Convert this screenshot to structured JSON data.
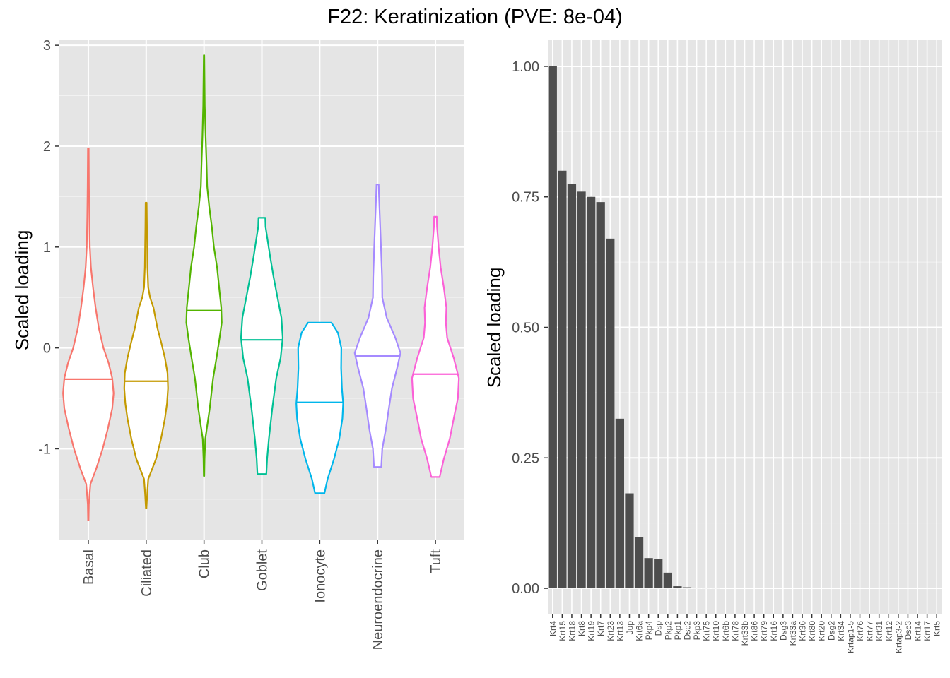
{
  "title": "F22: Keratinization (PVE: 8e-04)",
  "chart_data": [
    {
      "type": "violin",
      "ylabel": "Scaled loading",
      "xlabel": "",
      "ylim": [
        -1.9,
        3.05
      ],
      "yticks": [
        -1,
        0,
        1,
        2,
        3
      ],
      "grid": true,
      "categories": [
        "Basal",
        "Ciliated",
        "Club",
        "Goblet",
        "Ionocyte",
        "Neuroendocrine",
        "Tuft"
      ],
      "colors": [
        "#F8766D",
        "#C49A00",
        "#53B400",
        "#00C094",
        "#00B6EB",
        "#A58AFF",
        "#FB61D7"
      ],
      "medians": [
        -0.31,
        -0.33,
        0.37,
        0.08,
        -0.54,
        -0.08,
        -0.26
      ],
      "ranges": [
        [
          -1.71,
          1.98
        ],
        [
          -1.59,
          1.44
        ],
        [
          -1.27,
          2.9
        ],
        [
          -1.25,
          1.29
        ],
        [
          -1.44,
          0.25
        ],
        [
          -1.18,
          1.62
        ],
        [
          -1.28,
          1.3
        ]
      ],
      "profiles": [
        [
          [
            -1.71,
            0.01
          ],
          [
            -1.55,
            0.02
          ],
          [
            -1.35,
            0.08
          ],
          [
            -1.2,
            0.3
          ],
          [
            -1.0,
            0.55
          ],
          [
            -0.8,
            0.75
          ],
          [
            -0.6,
            0.92
          ],
          [
            -0.45,
            0.97
          ],
          [
            -0.3,
            0.92
          ],
          [
            -0.15,
            0.78
          ],
          [
            0.0,
            0.58
          ],
          [
            0.2,
            0.4
          ],
          [
            0.4,
            0.28
          ],
          [
            0.6,
            0.18
          ],
          [
            0.8,
            0.1
          ],
          [
            1.0,
            0.06
          ],
          [
            1.3,
            0.04
          ],
          [
            1.6,
            0.025
          ],
          [
            1.98,
            0.015
          ]
        ],
        [
          [
            -1.59,
            0.01
          ],
          [
            -1.45,
            0.04
          ],
          [
            -1.3,
            0.08
          ],
          [
            -1.1,
            0.38
          ],
          [
            -0.9,
            0.57
          ],
          [
            -0.7,
            0.72
          ],
          [
            -0.55,
            0.8
          ],
          [
            -0.4,
            0.84
          ],
          [
            -0.25,
            0.82
          ],
          [
            -0.1,
            0.72
          ],
          [
            0.05,
            0.58
          ],
          [
            0.2,
            0.43
          ],
          [
            0.4,
            0.28
          ],
          [
            0.5,
            0.15
          ],
          [
            0.6,
            0.08
          ],
          [
            0.8,
            0.05
          ],
          [
            1.0,
            0.04
          ],
          [
            1.2,
            0.03
          ],
          [
            1.44,
            0.02
          ]
        ],
        [
          [
            -1.27,
            0.01
          ],
          [
            -1.1,
            0.02
          ],
          [
            -0.9,
            0.05
          ],
          [
            -0.6,
            0.22
          ],
          [
            -0.3,
            0.35
          ],
          [
            -0.1,
            0.48
          ],
          [
            0.1,
            0.6
          ],
          [
            0.25,
            0.68
          ],
          [
            0.4,
            0.66
          ],
          [
            0.6,
            0.58
          ],
          [
            0.8,
            0.5
          ],
          [
            1.0,
            0.38
          ],
          [
            1.2,
            0.3
          ],
          [
            1.4,
            0.2
          ],
          [
            1.6,
            0.12
          ],
          [
            1.8,
            0.1
          ],
          [
            2.1,
            0.06
          ],
          [
            2.4,
            0.03
          ],
          [
            2.9,
            0.01
          ]
        ],
        [
          [
            -1.25,
            0.17
          ],
          [
            -1.1,
            0.2
          ],
          [
            -0.9,
            0.27
          ],
          [
            -0.6,
            0.4
          ],
          [
            -0.3,
            0.55
          ],
          [
            -0.1,
            0.72
          ],
          [
            0.1,
            0.8
          ],
          [
            0.3,
            0.75
          ],
          [
            0.5,
            0.6
          ],
          [
            0.7,
            0.45
          ],
          [
            0.9,
            0.32
          ],
          [
            1.1,
            0.2
          ],
          [
            1.2,
            0.14
          ],
          [
            1.29,
            0.13
          ]
        ],
        [
          [
            -1.44,
            0.18
          ],
          [
            -1.3,
            0.3
          ],
          [
            -1.1,
            0.55
          ],
          [
            -0.9,
            0.75
          ],
          [
            -0.7,
            0.87
          ],
          [
            -0.55,
            0.9
          ],
          [
            -0.4,
            0.85
          ],
          [
            -0.2,
            0.82
          ],
          [
            0.0,
            0.83
          ],
          [
            0.15,
            0.7
          ],
          [
            0.25,
            0.45
          ]
        ],
        [
          [
            -1.18,
            0.14
          ],
          [
            -1.0,
            0.18
          ],
          [
            -0.8,
            0.32
          ],
          [
            -0.6,
            0.43
          ],
          [
            -0.4,
            0.55
          ],
          [
            -0.2,
            0.75
          ],
          [
            -0.05,
            0.88
          ],
          [
            0.1,
            0.68
          ],
          [
            0.3,
            0.35
          ],
          [
            0.5,
            0.18
          ],
          [
            0.7,
            0.17
          ],
          [
            1.0,
            0.13
          ],
          [
            1.2,
            0.1
          ],
          [
            1.4,
            0.07
          ],
          [
            1.62,
            0.04
          ]
        ],
        [
          [
            -1.28,
            0.16
          ],
          [
            -1.1,
            0.32
          ],
          [
            -0.9,
            0.55
          ],
          [
            -0.7,
            0.7
          ],
          [
            -0.5,
            0.86
          ],
          [
            -0.3,
            0.9
          ],
          [
            -0.1,
            0.7
          ],
          [
            0.1,
            0.45
          ],
          [
            0.25,
            0.4
          ],
          [
            0.4,
            0.42
          ],
          [
            0.6,
            0.32
          ],
          [
            0.8,
            0.2
          ],
          [
            1.0,
            0.12
          ],
          [
            1.2,
            0.06
          ],
          [
            1.3,
            0.05
          ]
        ]
      ]
    },
    {
      "type": "bar",
      "ylabel": "Scaled loading",
      "xlabel": "",
      "ylim": [
        -0.05,
        1.05
      ],
      "yticks": [
        "0.00",
        "0.25",
        "0.50",
        "0.75",
        "1.00"
      ],
      "categories": [
        "Krt4",
        "Krt15",
        "Krt18",
        "Krt8",
        "Krt19",
        "Krt7",
        "Krt23",
        "Krt13",
        "Jup",
        "Krt6a",
        "Pkp4",
        "Dsp",
        "Pkp2",
        "Pkp1",
        "Dsc2",
        "Pkp3",
        "Krt75",
        "Krt10",
        "Krt6b",
        "Krt78",
        "Krt33b",
        "Krt86",
        "Krt79",
        "Krt16",
        "Dsg3",
        "Krt33a",
        "Krt36",
        "Krt80",
        "Krt20",
        "Dsg2",
        "Krt34",
        "Krtap1-5",
        "Krt76",
        "Krt77",
        "Krt31",
        "Krt12",
        "Krtap3-2",
        "Dsc3",
        "Krt14",
        "Krt17",
        "Krt5"
      ],
      "values": [
        1.0,
        0.8,
        0.775,
        0.76,
        0.75,
        0.74,
        0.67,
        0.325,
        0.182,
        0.098,
        0.058,
        0.056,
        0.03,
        0.004,
        0.002,
        0.001,
        0.001,
        0.0005,
        0,
        0,
        0,
        0,
        0,
        0,
        0,
        0,
        0,
        0,
        0,
        0,
        0,
        0,
        0,
        0,
        0,
        0,
        0,
        0,
        0,
        0,
        0
      ],
      "bar_color": "#4d4d4d"
    }
  ]
}
